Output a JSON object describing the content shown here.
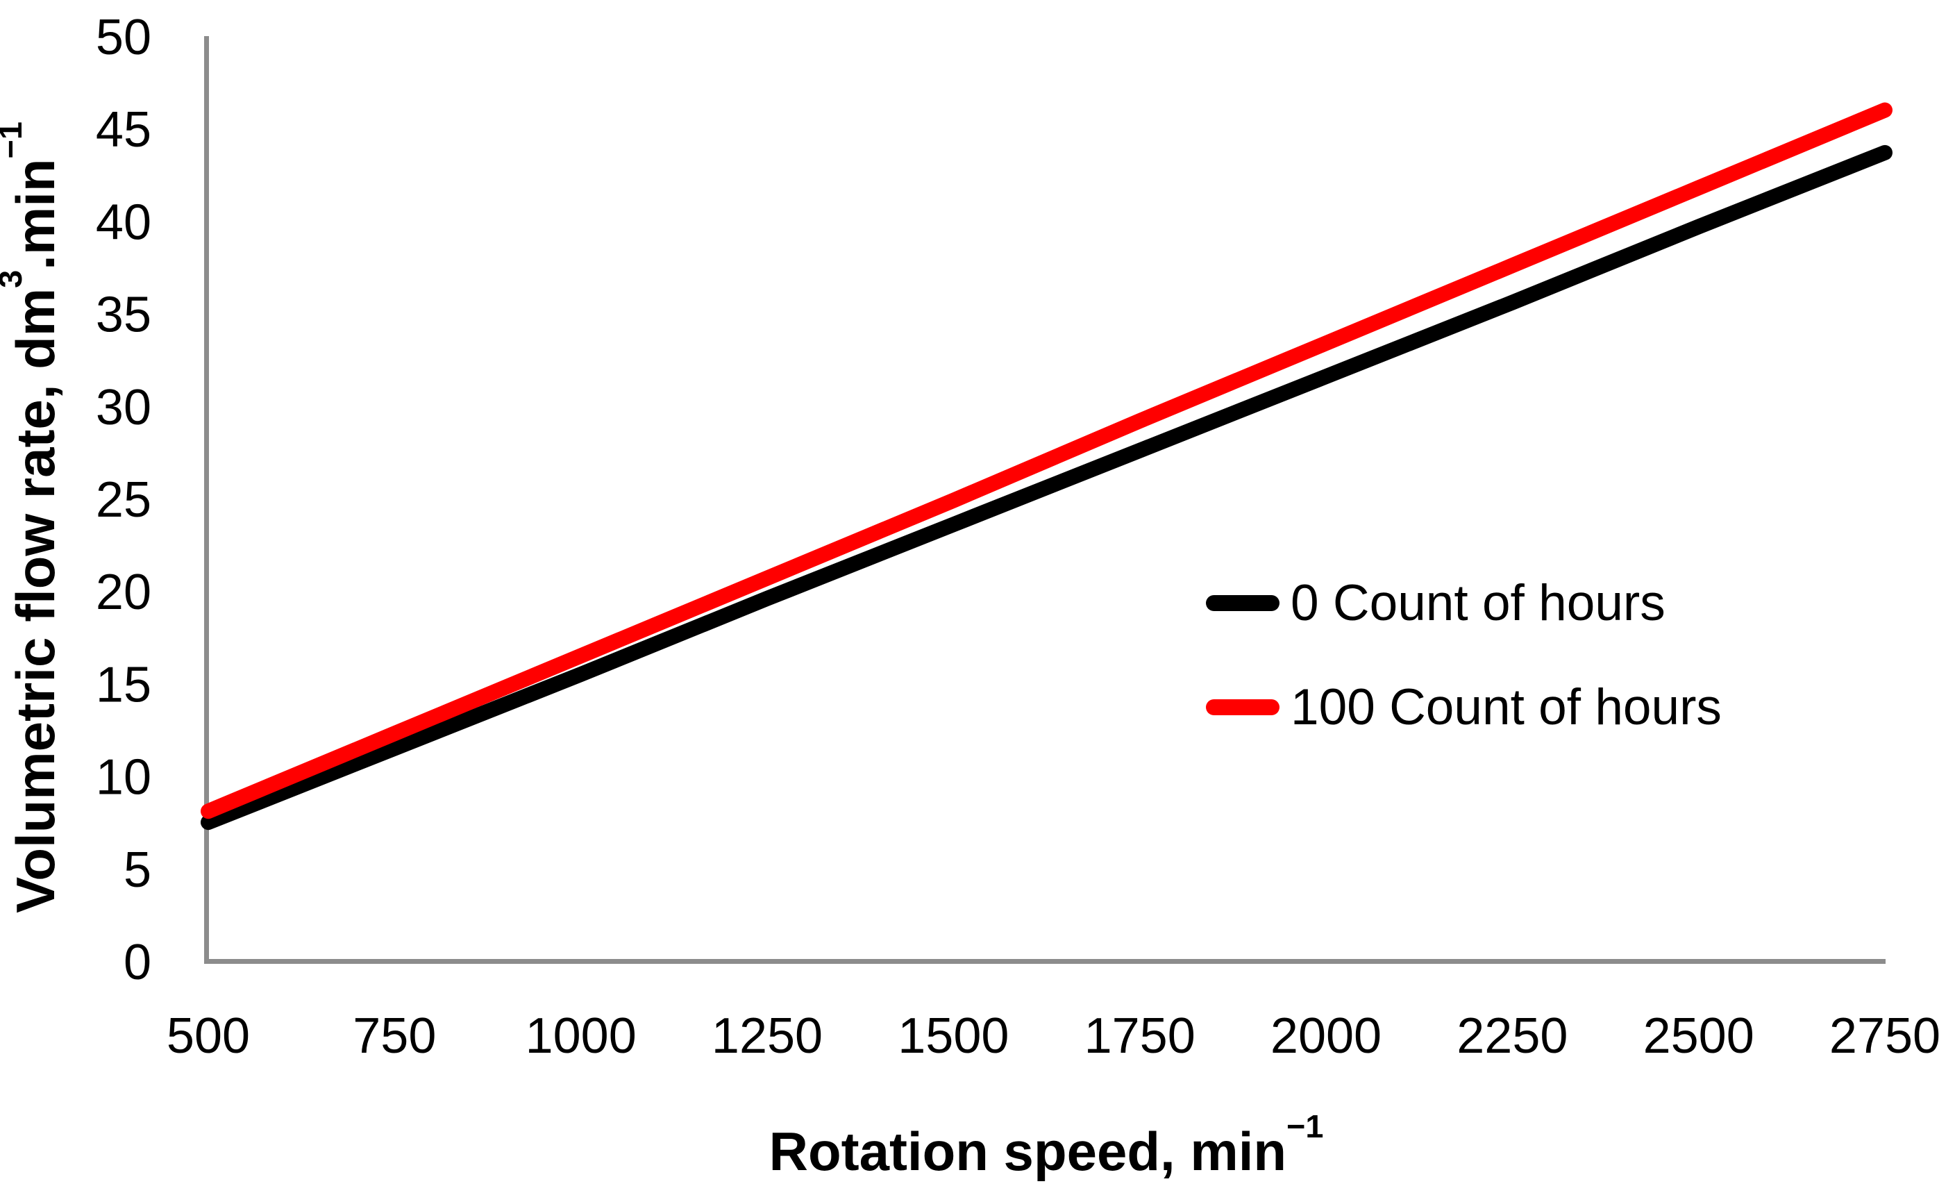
{
  "chart_data": {
    "type": "line",
    "title": "",
    "xlabel_parts": {
      "main": "Rotation speed, min",
      "sup": "−1"
    },
    "ylabel_parts": {
      "main": "Volumetric flow rate, dm",
      "sup1": "3",
      "mid": ".min",
      "sup2": "−1"
    },
    "x": [
      500,
      750,
      1000,
      1250,
      1500,
      1750,
      2000,
      2250,
      2500,
      2750
    ],
    "series": [
      {
        "name": "0 Count of hours",
        "color": "#000000",
        "values": [
          7.5,
          11.5,
          15.5,
          19.6,
          23.6,
          27.6,
          31.6,
          35.6,
          39.7,
          43.7
        ]
      },
      {
        "name": "100 Count of hours",
        "color": "#ff0000",
        "values": [
          8.1,
          12.3,
          16.5,
          20.7,
          24.9,
          29.2,
          33.4,
          37.6,
          41.8,
          46.0
        ]
      }
    ],
    "xlim": [
      500,
      2750
    ],
    "ylim": [
      0,
      50
    ],
    "x_ticks": [
      500,
      750,
      1000,
      1250,
      1500,
      1750,
      2000,
      2250,
      2500,
      2750
    ],
    "y_ticks": [
      0,
      5,
      10,
      15,
      20,
      25,
      30,
      35,
      40,
      45,
      50
    ],
    "grid": false,
    "legend_position": "middle-right",
    "axis_color": "#8C8C8C",
    "line_width": 22
  }
}
